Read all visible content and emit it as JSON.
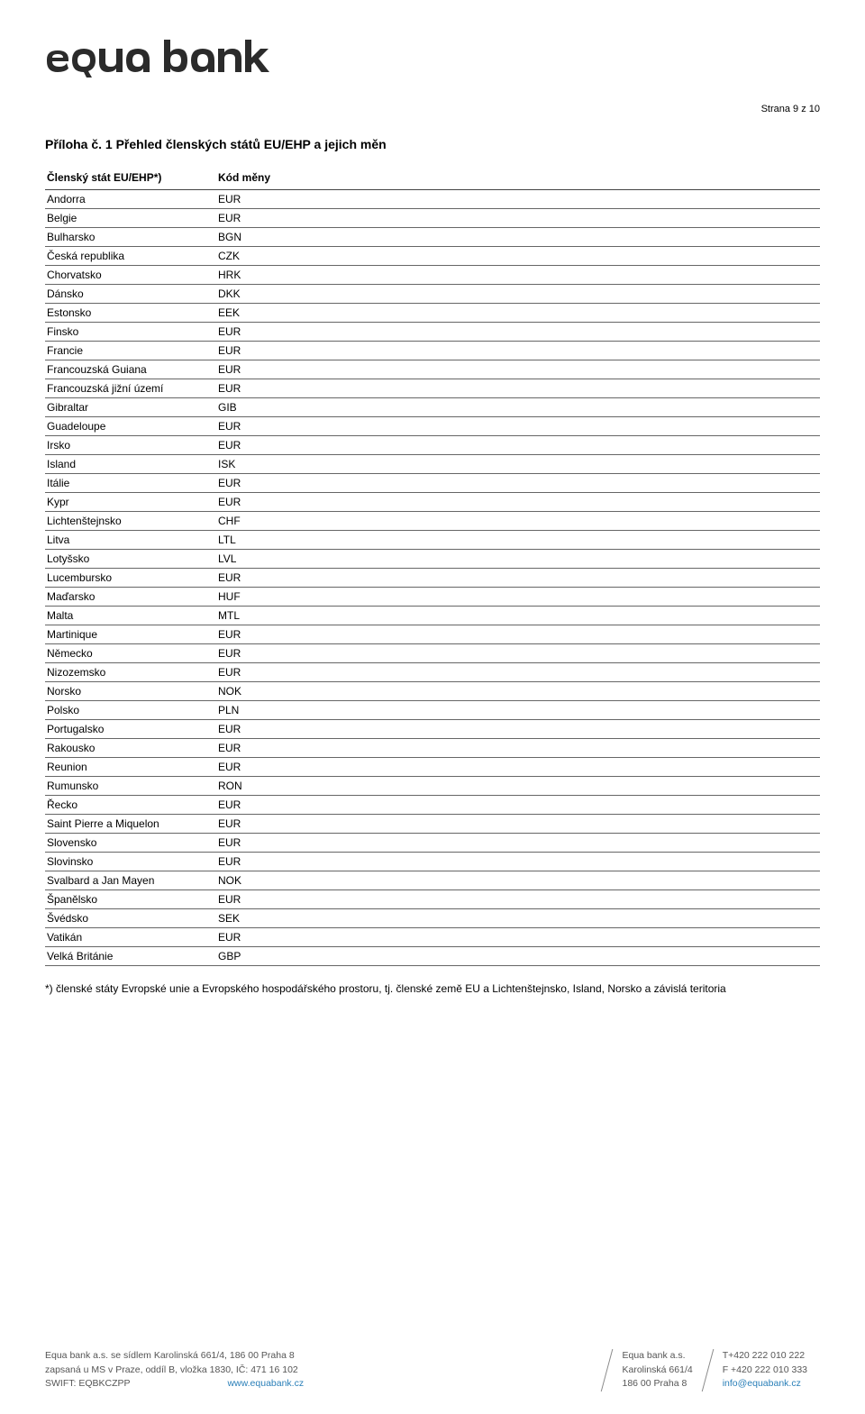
{
  "logo": {
    "text": "Equa bank",
    "color": "#2b2b2b"
  },
  "page_number": "Strana 9 z 10",
  "section_title": "Příloha č. 1 Přehled členských států EU/EHP a jejich měn",
  "table": {
    "header_country": "Členský stát EU/EHP*)",
    "header_currency": "Kód měny",
    "col_country_width": 190,
    "border_color": "#666666",
    "header_border_color": "#444444",
    "fontsize": 12,
    "rows": [
      {
        "country": "Andorra",
        "code": "EUR"
      },
      {
        "country": "Belgie",
        "code": "EUR"
      },
      {
        "country": "Bulharsko",
        "code": "BGN"
      },
      {
        "country": "Česká republika",
        "code": "CZK"
      },
      {
        "country": "Chorvatsko",
        "code": "HRK"
      },
      {
        "country": "Dánsko",
        "code": "DKK"
      },
      {
        "country": "Estonsko",
        "code": "EEK"
      },
      {
        "country": "Finsko",
        "code": "EUR"
      },
      {
        "country": "Francie",
        "code": "EUR"
      },
      {
        "country": "Francouzská Guiana",
        "code": "EUR"
      },
      {
        "country": "Francouzská jižní území",
        "code": "EUR"
      },
      {
        "country": "Gibraltar",
        "code": "GIB"
      },
      {
        "country": "Guadeloupe",
        "code": "EUR"
      },
      {
        "country": "Irsko",
        "code": "EUR"
      },
      {
        "country": "Island",
        "code": "ISK"
      },
      {
        "country": "Itálie",
        "code": "EUR"
      },
      {
        "country": "Kypr",
        "code": "EUR"
      },
      {
        "country": "Lichtenštejnsko",
        "code": "CHF"
      },
      {
        "country": "Litva",
        "code": "LTL"
      },
      {
        "country": "Lotyšsko",
        "code": "LVL"
      },
      {
        "country": "Lucembursko",
        "code": "EUR"
      },
      {
        "country": "Maďarsko",
        "code": "HUF"
      },
      {
        "country": "Malta",
        "code": "MTL"
      },
      {
        "country": "Martinique",
        "code": "EUR"
      },
      {
        "country": "Německo",
        "code": "EUR"
      },
      {
        "country": "Nizozemsko",
        "code": "EUR"
      },
      {
        "country": "Norsko",
        "code": "NOK"
      },
      {
        "country": "Polsko",
        "code": "PLN"
      },
      {
        "country": "Portugalsko",
        "code": "EUR"
      },
      {
        "country": "Rakousko",
        "code": "EUR"
      },
      {
        "country": "Reunion",
        "code": "EUR"
      },
      {
        "country": "Rumunsko",
        "code": "RON"
      },
      {
        "country": "Řecko",
        "code": "EUR"
      },
      {
        "country": "Saint Pierre a Miquelon",
        "code": "EUR"
      },
      {
        "country": "Slovensko",
        "code": "EUR"
      },
      {
        "country": "Slovinsko",
        "code": "EUR"
      },
      {
        "country": "Svalbard a Jan Mayen",
        "code": "NOK"
      },
      {
        "country": "Španělsko",
        "code": "EUR"
      },
      {
        "country": "Švédsko",
        "code": "SEK"
      },
      {
        "country": "Vatikán",
        "code": "EUR"
      },
      {
        "country": "Velká Británie",
        "code": "GBP"
      }
    ]
  },
  "footnote": "*) členské státy Evropské unie a Evropského hospodářského prostoru, tj. členské země EU a Lichtenštejnsko, Island, Norsko a závislá teritoria",
  "footer": {
    "text_color": "#555555",
    "link_color": "#2a7fb8",
    "left": {
      "line1": "Equa bank a.s. se sídlem Karolinská 661/4, 186 00 Praha 8",
      "line2": "zapsaná u MS v Praze, oddíl B, vložka 1830, IČ: 471 16 102",
      "line3_label": "SWIFT: EQBKCZPP",
      "line3_link": "www.equabank.cz"
    },
    "mid": {
      "line1": "Equa bank a.s.",
      "line2": "Karolinská 661/4",
      "line3": "186 00 Praha 8"
    },
    "right": {
      "line1": "T+420 222 010 222",
      "line2": "F +420 222 010 333",
      "line3": "info@equabank.cz"
    }
  }
}
